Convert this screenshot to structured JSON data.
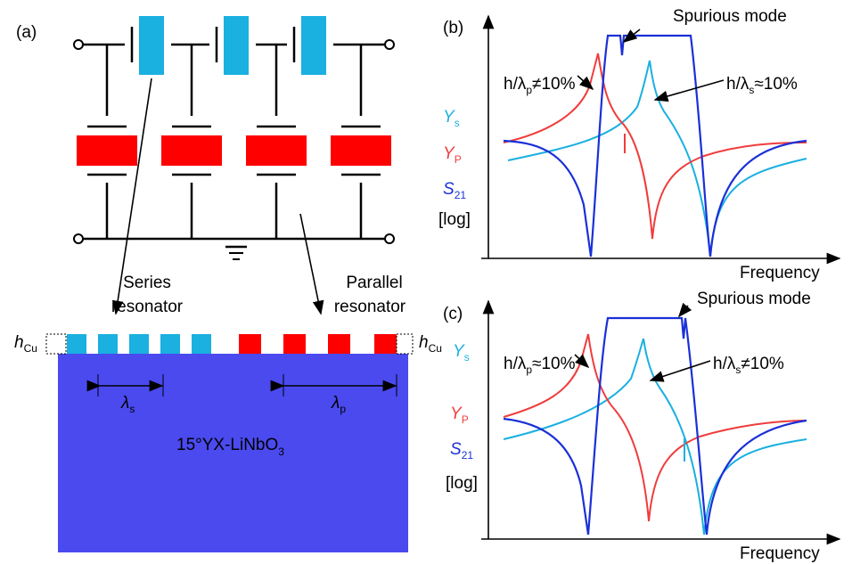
{
  "panel_a": {
    "label": "(a)",
    "series_label": [
      "Series",
      "resonator"
    ],
    "parallel_label": [
      "Parallel",
      "resonator"
    ],
    "thickness": {
      "main": "h",
      "sub": "Cu"
    },
    "pitch_s": {
      "main": "λ",
      "sub": "s"
    },
    "pitch_p": {
      "main": "λ",
      "sub": "p"
    },
    "substrate": {
      "main": "15°YX-LiNbO",
      "sub": "3"
    }
  },
  "panel_b": {
    "label": "(b)",
    "spurious": "Spurious mode",
    "note_p": {
      "main": "h/λ",
      "sub": "p",
      "rest": "≠10%"
    },
    "note_s": {
      "main": "h/λ",
      "sub": "s",
      "rest": "≈10%"
    },
    "legend": [
      {
        "main": "Y",
        "sub": "s"
      },
      {
        "main": "Y",
        "sub": "P"
      },
      {
        "main": "S",
        "sub": "21"
      }
    ],
    "scale": "[log]",
    "x_label": "Frequency"
  },
  "panel_c": {
    "label": "(c)",
    "spurious": "Spurious mode",
    "note_p": {
      "main": "h/λ",
      "sub": "p",
      "rest": "≈10%"
    },
    "note_s": {
      "main": "h/λ",
      "sub": "s",
      "rest": "≠10%"
    },
    "legend": [
      {
        "main": "Y",
        "sub": "s"
      },
      {
        "main": "Y",
        "sub": "P"
      },
      {
        "main": "S",
        "sub": "21"
      }
    ],
    "scale": "[log]",
    "x_label": "Frequency"
  }
}
